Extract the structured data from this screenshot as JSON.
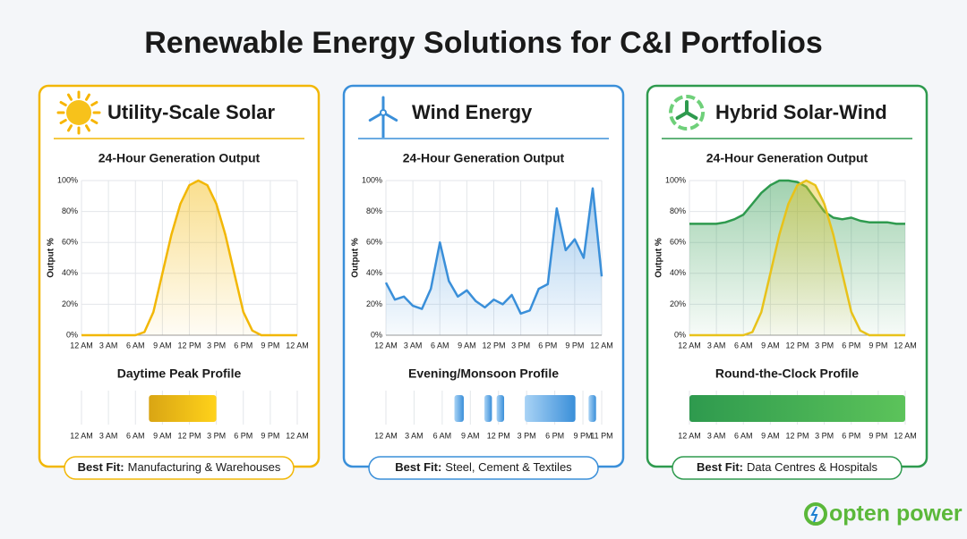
{
  "title": "Renewable Energy Solutions for C&I Portfolios",
  "logo": "opten power",
  "chart_data": [
    {
      "type": "line",
      "panel_title": "Utility-Scale Solar",
      "title": "24-Hour Generation Output",
      "y_label": "Output %",
      "color": "#f2b705",
      "x": [
        0,
        1,
        2,
        3,
        4,
        5,
        6,
        7,
        8,
        9,
        10,
        11,
        12,
        13,
        14,
        15,
        16,
        17,
        18,
        19,
        20,
        21,
        22,
        23,
        24
      ],
      "series": [
        {
          "color": "#f2b705",
          "values": [
            0,
            0,
            0,
            0,
            0,
            0,
            0,
            2,
            15,
            40,
            65,
            85,
            97,
            100,
            97,
            85,
            65,
            40,
            15,
            3,
            0,
            0,
            0,
            0,
            0
          ]
        }
      ],
      "xlim": [
        0,
        24
      ],
      "ylim": [
        0,
        100
      ],
      "xticks": [
        {
          "value": 0,
          "label": "12 AM"
        },
        {
          "value": 3,
          "label": "3 AM"
        },
        {
          "value": 6,
          "label": "6 AM"
        },
        {
          "value": 9,
          "label": "9 AM"
        },
        {
          "value": 12,
          "label": "12 PM"
        },
        {
          "value": 15,
          "label": "3 PM"
        },
        {
          "value": 18,
          "label": "6 PM"
        },
        {
          "value": 21,
          "label": "9 PM"
        },
        {
          "value": 24,
          "label": "12 AM"
        }
      ],
      "yticks": [
        {
          "value": 0,
          "label": "0%"
        },
        {
          "value": 20,
          "label": "20%"
        },
        {
          "value": 40,
          "label": "40%"
        },
        {
          "value": 60,
          "label": "60%"
        },
        {
          "value": 80,
          "label": "80%"
        },
        {
          "value": 100,
          "label": "100%"
        }
      ],
      "grid": true,
      "profile": {
        "title": "Daytime Peak Profile",
        "colors": [
          "#d9a514",
          "#ffd21a"
        ],
        "ranges": [
          [
            7.5,
            15
          ]
        ],
        "xlim": [
          0,
          24
        ],
        "xticks": [
          {
            "value": 0,
            "label": "12 AM"
          },
          {
            "value": 3,
            "label": "3 AM"
          },
          {
            "value": 6,
            "label": "6 AM"
          },
          {
            "value": 9,
            "label": "9 AM"
          },
          {
            "value": 12,
            "label": "12 PM"
          },
          {
            "value": 15,
            "label": "3 PM"
          },
          {
            "value": 18,
            "label": "6 PM"
          },
          {
            "value": 21,
            "label": "9 PM"
          },
          {
            "value": 24,
            "label": "12 AM"
          }
        ]
      },
      "best_fit": {
        "label": "Best Fit:",
        "text": "Manufacturing & Warehouses"
      }
    },
    {
      "type": "line",
      "panel_title": "Wind Energy",
      "title": "24-Hour Generation Output",
      "y_label": "Output %",
      "color": "#3a8fd9",
      "x": [
        0,
        1,
        2,
        3,
        4,
        5,
        6,
        7,
        8,
        9,
        10,
        11,
        12,
        13,
        14,
        15,
        16,
        17,
        18,
        19,
        20,
        21,
        22,
        23,
        24
      ],
      "series": [
        {
          "color": "#3a8fd9",
          "values": [
            34,
            23,
            25,
            19,
            17,
            30,
            60,
            35,
            25,
            29,
            22,
            18,
            23,
            20,
            26,
            14,
            16,
            30,
            33,
            82,
            55,
            62,
            50,
            95,
            38
          ]
        }
      ],
      "xlim": [
        0,
        24
      ],
      "ylim": [
        0,
        100
      ],
      "xticks": [
        {
          "value": 0,
          "label": "12 AM"
        },
        {
          "value": 3,
          "label": "3 AM"
        },
        {
          "value": 6,
          "label": "6 AM"
        },
        {
          "value": 9,
          "label": "9 AM"
        },
        {
          "value": 12,
          "label": "12 PM"
        },
        {
          "value": 15,
          "label": "3 PM"
        },
        {
          "value": 18,
          "label": "6 PM"
        },
        {
          "value": 21,
          "label": "9 PM"
        },
        {
          "value": 24,
          "label": "12 AM"
        }
      ],
      "yticks": [
        {
          "value": 0,
          "label": "0%"
        },
        {
          "value": 20,
          "label": "20%"
        },
        {
          "value": 40,
          "label": "40%"
        },
        {
          "value": 60,
          "label": "60%"
        },
        {
          "value": 80,
          "label": "80%"
        },
        {
          "value": 100,
          "label": "100%"
        }
      ],
      "grid": true,
      "profile": {
        "title": "Evening/Monsoon Profile",
        "colors": [
          "#a9d3f5",
          "#3a8fd9"
        ],
        "ranges": [
          [
            7.3,
            8.3
          ],
          [
            10.5,
            11.3
          ],
          [
            11.8,
            12.6
          ],
          [
            14.8,
            20.2
          ],
          [
            21.6,
            22.4
          ]
        ],
        "xlim": [
          0,
          23
        ],
        "xticks": [
          {
            "value": 0,
            "label": "12 AM"
          },
          {
            "value": 3,
            "label": "3 AM"
          },
          {
            "value": 6,
            "label": "6 AM"
          },
          {
            "value": 9,
            "label": "9 AM"
          },
          {
            "value": 12,
            "label": "12 PM"
          },
          {
            "value": 15,
            "label": "3 PM"
          },
          {
            "value": 18,
            "label": "6 PM"
          },
          {
            "value": 21,
            "label": "9 PM"
          },
          {
            "value": 23,
            "label": "11 PM"
          }
        ]
      },
      "best_fit": {
        "label": "Best Fit:",
        "text": "Steel, Cement & Textiles"
      }
    },
    {
      "type": "line",
      "panel_title": "Hybrid Solar-Wind",
      "title": "24-Hour Generation Output",
      "y_label": "Output %",
      "color": "#2e9a4e",
      "x": [
        0,
        1,
        2,
        3,
        4,
        5,
        6,
        7,
        8,
        9,
        10,
        11,
        12,
        13,
        14,
        15,
        16,
        17,
        18,
        19,
        20,
        21,
        22,
        23,
        24
      ],
      "series": [
        {
          "color": "#2e9a4e",
          "values": [
            72,
            72,
            72,
            72,
            73,
            75,
            78,
            85,
            92,
            97,
            100,
            100,
            99,
            96,
            88,
            80,
            76,
            75,
            76,
            74,
            73,
            73,
            73,
            72,
            72
          ]
        },
        {
          "color": "#e8c21a",
          "values": [
            0,
            0,
            0,
            0,
            0,
            0,
            0,
            2,
            15,
            40,
            65,
            85,
            97,
            100,
            97,
            85,
            65,
            40,
            15,
            3,
            0,
            0,
            0,
            0,
            0
          ]
        }
      ],
      "xlim": [
        0,
        24
      ],
      "ylim": [
        0,
        100
      ],
      "xticks": [
        {
          "value": 0,
          "label": "12 AM"
        },
        {
          "value": 3,
          "label": "3 AM"
        },
        {
          "value": 6,
          "label": "6 AM"
        },
        {
          "value": 9,
          "label": "9 AM"
        },
        {
          "value": 12,
          "label": "12 PM"
        },
        {
          "value": 15,
          "label": "3 PM"
        },
        {
          "value": 18,
          "label": "6 PM"
        },
        {
          "value": 21,
          "label": "9 PM"
        },
        {
          "value": 24,
          "label": "12 AM"
        }
      ],
      "yticks": [
        {
          "value": 0,
          "label": "0%"
        },
        {
          "value": 20,
          "label": "20%"
        },
        {
          "value": 40,
          "label": "40%"
        },
        {
          "value": 60,
          "label": "60%"
        },
        {
          "value": 80,
          "label": "80%"
        },
        {
          "value": 100,
          "label": "100%"
        }
      ],
      "grid": true,
      "profile": {
        "title": "Round-the-Clock Profile",
        "colors": [
          "#2e9a4e",
          "#5cc35a"
        ],
        "ranges": [
          [
            0,
            24
          ]
        ],
        "xlim": [
          0,
          24
        ],
        "xticks": [
          {
            "value": 0,
            "label": "12 AM"
          },
          {
            "value": 3,
            "label": "3 AM"
          },
          {
            "value": 6,
            "label": "6 AM"
          },
          {
            "value": 9,
            "label": "9 AM"
          },
          {
            "value": 12,
            "label": "12 PM"
          },
          {
            "value": 15,
            "label": "3 PM"
          },
          {
            "value": 18,
            "label": "6 PM"
          },
          {
            "value": 21,
            "label": "9 PM"
          },
          {
            "value": 24,
            "label": "12 AM"
          }
        ]
      },
      "best_fit": {
        "label": "Best Fit:",
        "text": "Data Centres & Hospitals"
      }
    }
  ]
}
